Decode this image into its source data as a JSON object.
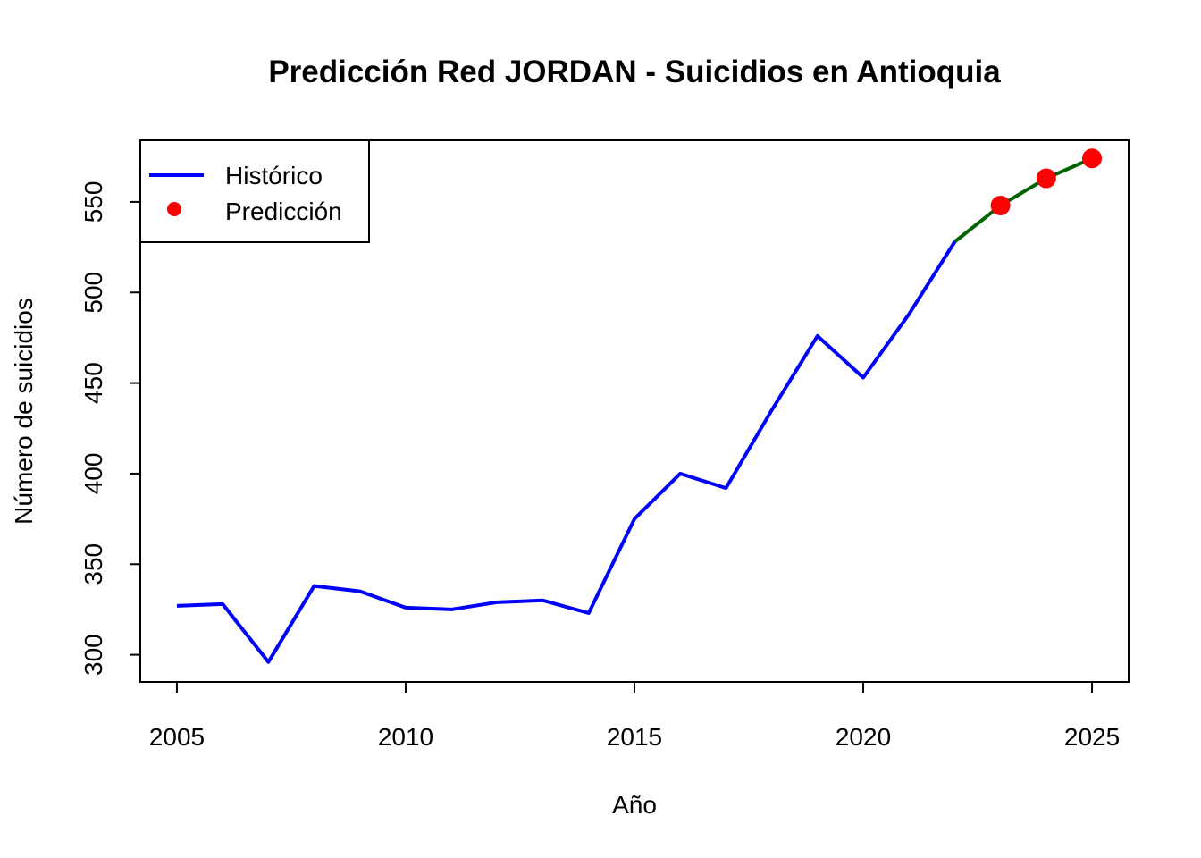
{
  "chart_data": {
    "type": "line",
    "title": "Predicción Red JORDAN - Suicidios en Antioquia",
    "xlabel": "Año",
    "ylabel": "Número de suicidios",
    "xlim": [
      2004.2,
      2025.8
    ],
    "ylim": [
      285,
      584
    ],
    "x_ticks": [
      2005,
      2010,
      2015,
      2020,
      2025
    ],
    "y_ticks": [
      300,
      350,
      400,
      450,
      500,
      550
    ],
    "grid": false,
    "legend": {
      "placement": "top-left",
      "entries": [
        {
          "label": "Histórico",
          "symbol": "line",
          "color": "#0000ff"
        },
        {
          "label": "Predicción",
          "symbol": "point",
          "color": "#ff0000"
        }
      ]
    },
    "series": [
      {
        "name": "Histórico",
        "color": "#0000ff",
        "x": [
          2005,
          2006,
          2007,
          2008,
          2009,
          2010,
          2011,
          2012,
          2013,
          2014,
          2015,
          2016,
          2017,
          2018,
          2019,
          2020,
          2021,
          2022
        ],
        "values": [
          327,
          328,
          296,
          338,
          335,
          326,
          325,
          329,
          330,
          323,
          375,
          400,
          392,
          435,
          476,
          453,
          488,
          528
        ]
      },
      {
        "name": "Predicción",
        "color": "#ff0000",
        "line_color": "#006400",
        "x": [
          2022,
          2023,
          2024,
          2025
        ],
        "values": [
          528,
          548,
          563,
          574
        ]
      }
    ]
  }
}
